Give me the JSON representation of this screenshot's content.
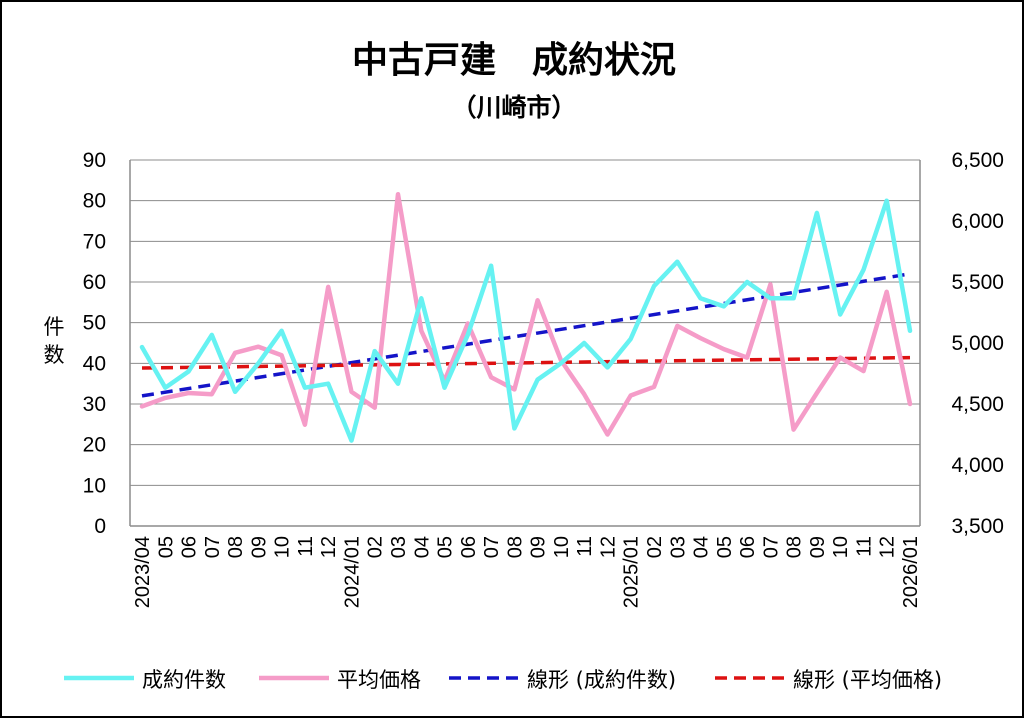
{
  "chart_data": {
    "type": "line",
    "title": "中古戸建　成約状況",
    "subtitle": "（川崎市）",
    "ylabel": "件数",
    "ylim": [
      0,
      90
    ],
    "yticks": [
      "0",
      "10",
      "20",
      "30",
      "40",
      "50",
      "60",
      "70",
      "80",
      "90"
    ],
    "y2lim": [
      3500,
      6500
    ],
    "y2ticks": [
      "3,500",
      "4,000",
      "4,500",
      "5,000",
      "5,500",
      "6,000",
      "6,500"
    ],
    "x_labels": [
      "2023/04",
      "05",
      "06",
      "07",
      "08",
      "09",
      "10",
      "11",
      "12",
      "2024/01",
      "02",
      "03",
      "04",
      "05",
      "06",
      "07",
      "08",
      "09",
      "10",
      "11",
      "12",
      "2025/01",
      "02",
      "03",
      "04",
      "05",
      "06",
      "07",
      "08",
      "09",
      "10",
      "11",
      "12",
      "2026/01"
    ],
    "grid": true,
    "legend_position": "bottom",
    "series": [
      {
        "name": "成約件数",
        "axis": "left",
        "color": "#66f2f2",
        "style": "solid",
        "values": [
          44,
          34,
          38,
          47,
          33,
          40,
          48,
          34,
          35,
          21,
          43,
          35,
          56,
          34,
          47,
          64,
          24,
          36,
          40,
          45,
          39,
          46,
          59,
          65,
          56,
          54,
          60,
          56,
          56,
          77,
          52,
          63,
          80,
          48
        ]
      },
      {
        "name": "平均価格",
        "axis": "right",
        "color": "#f59cc8",
        "style": "solid",
        "values": [
          4480,
          4550,
          4590,
          4580,
          4920,
          4970,
          4900,
          4330,
          5460,
          4600,
          4470,
          6220,
          5100,
          4690,
          5160,
          4720,
          4620,
          5350,
          4860,
          4580,
          4250,
          4570,
          4640,
          5140,
          5040,
          4950,
          4880,
          5480,
          4290,
          4590,
          4880,
          4770,
          5420,
          4500
        ]
      },
      {
        "name": "線形 (成約件数)",
        "axis": "left",
        "color": "#1414c8",
        "style": "dashed",
        "trend": [
          32,
          62
        ]
      },
      {
        "name": "線形 (平均価格)",
        "axis": "right",
        "color": "#dd1111",
        "style": "dashed",
        "trend": [
          4795,
          4880
        ]
      }
    ]
  }
}
